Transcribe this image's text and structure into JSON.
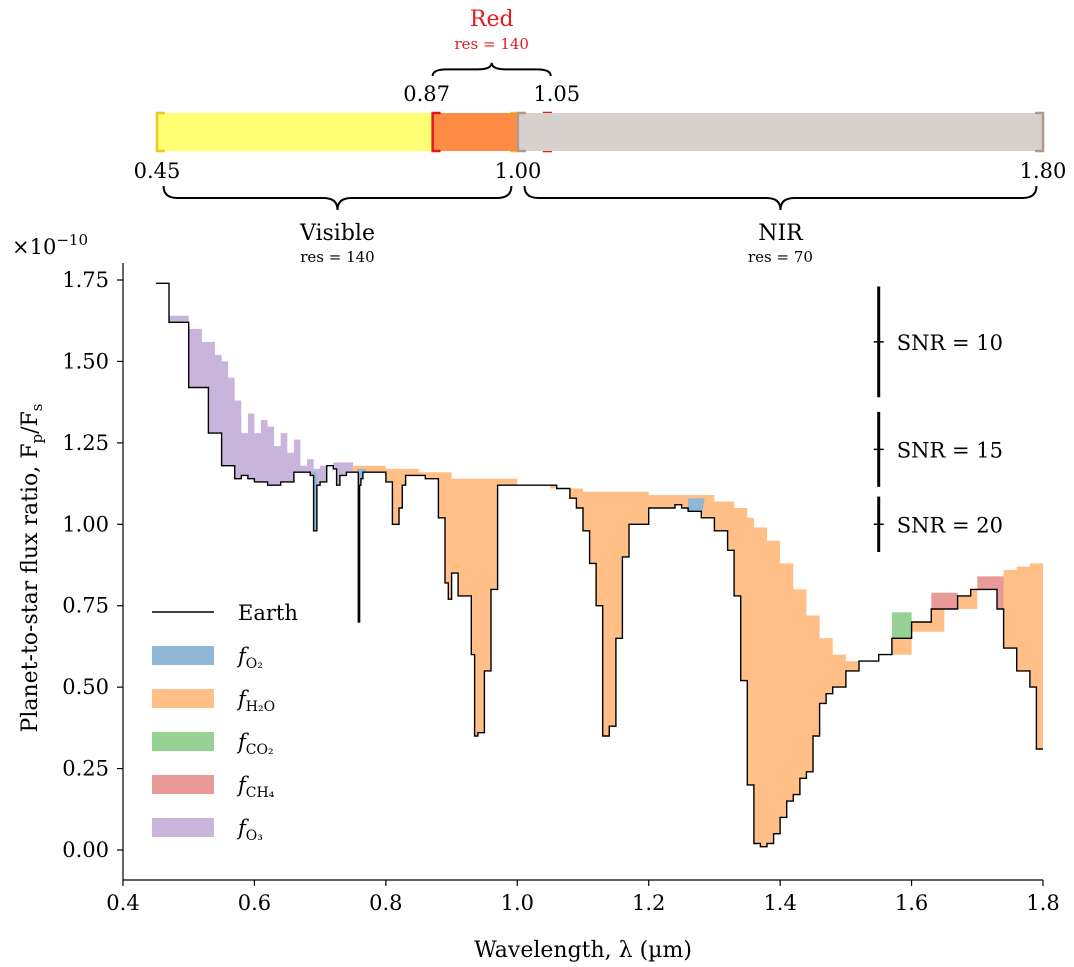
{
  "chart_data": {
    "type": "area",
    "xlabel": "Wavelength, λ (µm)",
    "ylabel": "Planet-to-star flux ratio, F",
    "ylabel_sub1": "p",
    "ylabel_mid": "/F",
    "ylabel_sub2": "s",
    "y_scale_prefix": "×10",
    "y_scale_exponent": "−10",
    "xlim": [
      0.4,
      1.8
    ],
    "ylim": [
      -0.08,
      1.75
    ],
    "xticks": [
      "0.4",
      "0.6",
      "0.8",
      "1.0",
      "1.2",
      "1.4",
      "1.6",
      "1.8"
    ],
    "xtick_values": [
      0.4,
      0.6,
      0.8,
      1.0,
      1.2,
      1.4,
      1.6,
      1.8
    ],
    "yticks": [
      "0.00",
      "0.25",
      "0.50",
      "0.75",
      "1.00",
      "1.25",
      "1.50",
      "1.75"
    ],
    "ytick_values": [
      0.0,
      0.25,
      0.5,
      0.75,
      1.0,
      1.25,
      1.5,
      1.75
    ],
    "legend_position": "lower-left",
    "legend": [
      {
        "label": "Earth",
        "base": "",
        "sub": "",
        "color": "#000000",
        "kind": "line"
      },
      {
        "label": "",
        "base": "f",
        "sub": "O₂",
        "color": "#8fb8d8",
        "kind": "patch"
      },
      {
        "label": "",
        "base": "f",
        "sub": "H₂O",
        "color": "#ffbf86",
        "kind": "patch"
      },
      {
        "label": "",
        "base": "f",
        "sub": "CO₂",
        "color": "#96d294",
        "kind": "patch"
      },
      {
        "label": "",
        "base": "f",
        "sub": "CH₄",
        "color": "#e99a98",
        "kind": "patch"
      },
      {
        "label": "",
        "base": "f",
        "sub": "O₃",
        "color": "#c9b4dc",
        "kind": "patch"
      }
    ],
    "colors": {
      "O2": "#8fb8d8",
      "H2O": "#ffbf86",
      "CO2": "#96d294",
      "CH4": "#e99a98",
      "O3": "#c9b4dc",
      "earth": "#000000"
    },
    "earth_x": [
      0.45,
      0.47,
      0.5,
      0.53,
      0.55,
      0.57,
      0.58,
      0.59,
      0.6,
      0.62,
      0.64,
      0.66,
      0.68,
      0.685,
      0.69,
      0.695,
      0.7,
      0.71,
      0.72,
      0.725,
      0.73,
      0.74,
      0.75,
      0.758,
      0.76,
      0.762,
      0.765,
      0.77,
      0.8,
      0.81,
      0.82,
      0.825,
      0.83,
      0.86,
      0.88,
      0.89,
      0.895,
      0.9,
      0.91,
      0.92,
      0.93,
      0.935,
      0.94,
      0.95,
      0.96,
      0.97,
      1.0,
      1.06,
      1.08,
      1.09,
      1.1,
      1.11,
      1.12,
      1.13,
      1.14,
      1.15,
      1.16,
      1.17,
      1.2,
      1.22,
      1.24,
      1.25,
      1.26,
      1.27,
      1.28,
      1.3,
      1.32,
      1.33,
      1.34,
      1.35,
      1.36,
      1.37,
      1.38,
      1.39,
      1.4,
      1.41,
      1.42,
      1.43,
      1.44,
      1.45,
      1.46,
      1.47,
      1.48,
      1.5,
      1.52,
      1.55,
      1.57,
      1.6,
      1.63,
      1.67,
      1.69,
      1.7,
      1.72,
      1.73,
      1.74,
      1.76,
      1.78,
      1.79,
      1.8
    ],
    "earth_y": [
      1.74,
      1.62,
      1.42,
      1.28,
      1.18,
      1.14,
      1.15,
      1.14,
      1.13,
      1.12,
      1.13,
      1.16,
      1.16,
      1.15,
      0.98,
      1.12,
      1.13,
      1.18,
      1.17,
      1.12,
      1.15,
      1.16,
      1.16,
      0.7,
      1.12,
      1.14,
      1.16,
      1.16,
      1.13,
      1.0,
      1.05,
      1.12,
      1.15,
      1.14,
      1.02,
      0.82,
      0.77,
      0.85,
      0.78,
      0.78,
      0.6,
      0.35,
      0.36,
      0.55,
      0.8,
      1.12,
      1.12,
      1.11,
      1.08,
      1.05,
      0.98,
      0.88,
      0.75,
      0.35,
      0.38,
      0.65,
      0.9,
      1.0,
      1.05,
      1.05,
      1.06,
      1.05,
      1.04,
      1.04,
      1.02,
      0.98,
      0.92,
      0.78,
      0.52,
      0.2,
      0.02,
      0.01,
      0.02,
      0.05,
      0.1,
      0.15,
      0.17,
      0.22,
      0.24,
      0.35,
      0.45,
      0.48,
      0.5,
      0.55,
      0.58,
      0.6,
      0.65,
      0.7,
      0.74,
      0.78,
      0.8,
      0.8,
      0.8,
      0.74,
      0.62,
      0.55,
      0.5,
      0.31,
      0.31
    ],
    "O3_top_x": [
      0.45,
      0.47,
      0.5,
      0.52,
      0.53,
      0.54,
      0.55,
      0.56,
      0.57,
      0.58,
      0.59,
      0.6,
      0.61,
      0.62,
      0.63,
      0.64,
      0.65,
      0.66,
      0.67,
      0.68,
      0.69,
      0.7,
      0.72,
      0.74,
      0.75
    ],
    "O3_top_y": [
      1.74,
      1.64,
      1.6,
      1.56,
      1.56,
      1.52,
      1.5,
      1.45,
      1.38,
      1.28,
      1.34,
      1.28,
      1.32,
      1.3,
      1.24,
      1.28,
      1.22,
      1.26,
      1.18,
      1.2,
      1.17,
      1.18,
      1.19,
      1.19,
      1.18
    ],
    "H2O_top_x": [
      0.75,
      0.8,
      0.85,
      0.9,
      1.0,
      1.05,
      1.1,
      1.2,
      1.3,
      1.33,
      1.35,
      1.36,
      1.38,
      1.4,
      1.42,
      1.44,
      1.46,
      1.48,
      1.5,
      1.52,
      1.55,
      1.6,
      1.65,
      1.7,
      1.72,
      1.74,
      1.76,
      1.78,
      1.8
    ],
    "H2O_top_y": [
      1.18,
      1.17,
      1.16,
      1.14,
      1.12,
      1.11,
      1.1,
      1.09,
      1.07,
      1.05,
      1.02,
      0.99,
      0.95,
      0.88,
      0.8,
      0.72,
      0.65,
      0.6,
      0.58,
      0.58,
      0.6,
      0.67,
      0.74,
      0.8,
      0.84,
      0.86,
      0.87,
      0.88,
      0.89
    ],
    "O2_bands": [
      {
        "x": [
          0.685,
          0.695
        ],
        "top": 1.16
      },
      {
        "x": [
          0.755,
          0.77
        ],
        "top": 1.17
      },
      {
        "x": [
          1.26,
          1.285
        ],
        "top": 1.08
      }
    ],
    "CO2_bands": [
      {
        "x": [
          1.57,
          1.6
        ],
        "top": 0.73
      }
    ],
    "CH4_bands": [
      {
        "x": [
          1.63,
          1.67
        ],
        "top": 0.79
      },
      {
        "x": [
          1.7,
          1.74
        ],
        "top": 0.84
      }
    ],
    "snr_markers": [
      {
        "label": "SNR = 10",
        "center": 1.56,
        "half": 0.17
      },
      {
        "label": "SNR = 15",
        "center": 1.23,
        "half": 0.115
      },
      {
        "label": "SNR = 20",
        "center": 1.0,
        "half": 0.085
      }
    ],
    "bandpass": {
      "bars": [
        {
          "name": "Visible",
          "range": [
            0.45,
            1.0
          ],
          "color": "#ffff73",
          "edge": "#f0c81e"
        },
        {
          "name": "Red",
          "range": [
            0.87,
            1.05
          ],
          "color": "#ff7f3f",
          "edge": "#e8191c"
        },
        {
          "name": "NIR",
          "range": [
            1.0,
            1.8
          ],
          "color": "#d6d1cd",
          "edge": "#b09a90"
        }
      ],
      "bar_ticks": [
        "0.45",
        "1.00",
        "1.80"
      ],
      "bar_tick_values": [
        0.45,
        1.0,
        1.8
      ],
      "red_ticks": [
        "0.87",
        "1.05"
      ],
      "red_tick_values": [
        0.87,
        1.05
      ],
      "visible_label": "Visible",
      "visible_res": "res = 140",
      "nir_label": "NIR",
      "nir_res": "res = 70",
      "red_label": "Red",
      "red_res": "res = 140",
      "red_label_color": "#e8191c"
    }
  }
}
